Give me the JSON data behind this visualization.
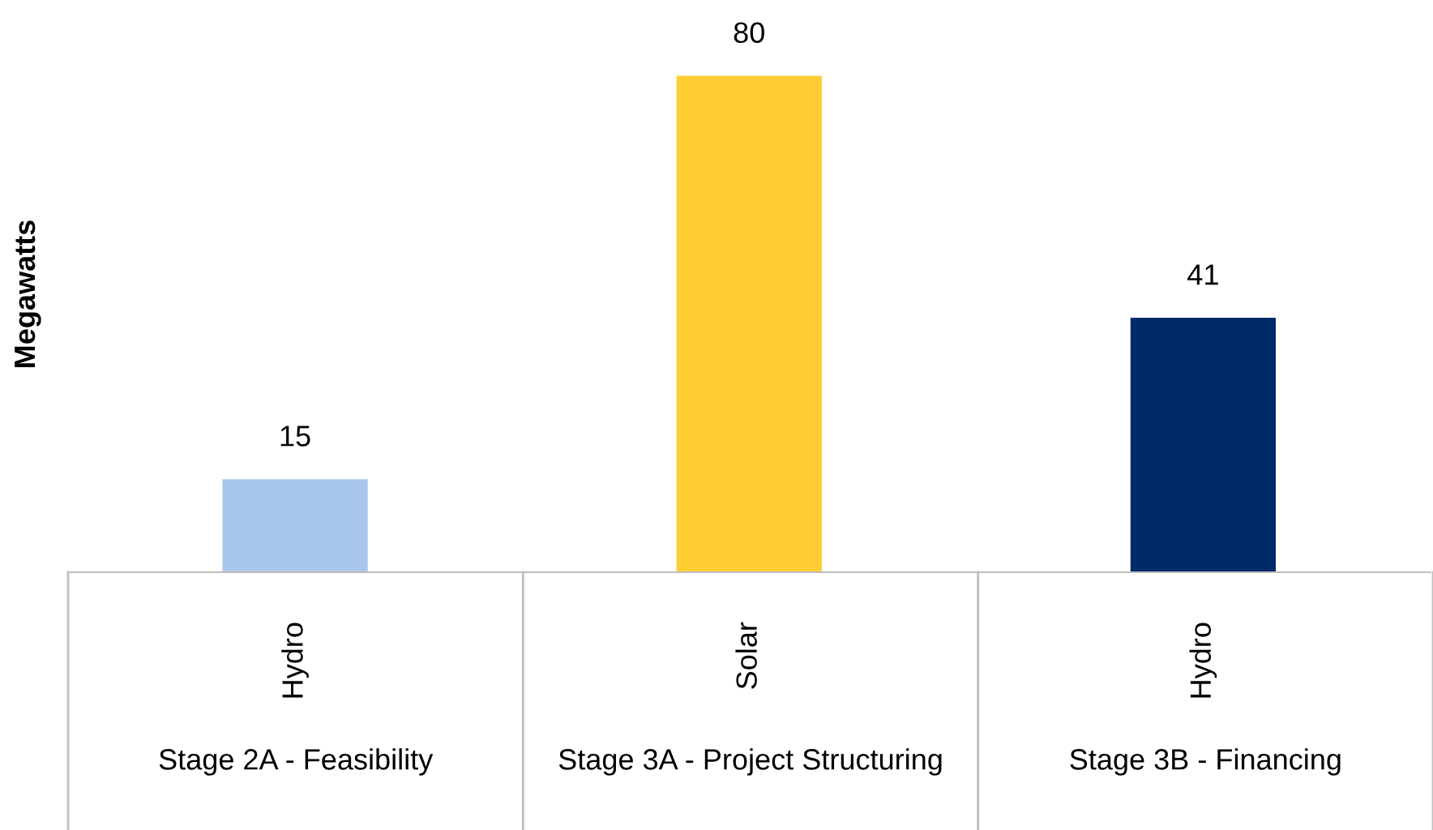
{
  "chart_data": {
    "type": "bar",
    "ylabel": "Megawatts",
    "categories": [
      "Hydro",
      "Solar",
      "Hydro"
    ],
    "values": [
      15,
      80,
      41
    ],
    "colors": [
      "#a9c6ec",
      "#fdcd32",
      "#002b6b"
    ],
    "data_labels": true,
    "grid": false,
    "legend": false,
    "annotations": [
      "Stage 2A - Feasibility",
      "Stage 3A - Project Structuring",
      "Stage 3B - Financing"
    ]
  }
}
